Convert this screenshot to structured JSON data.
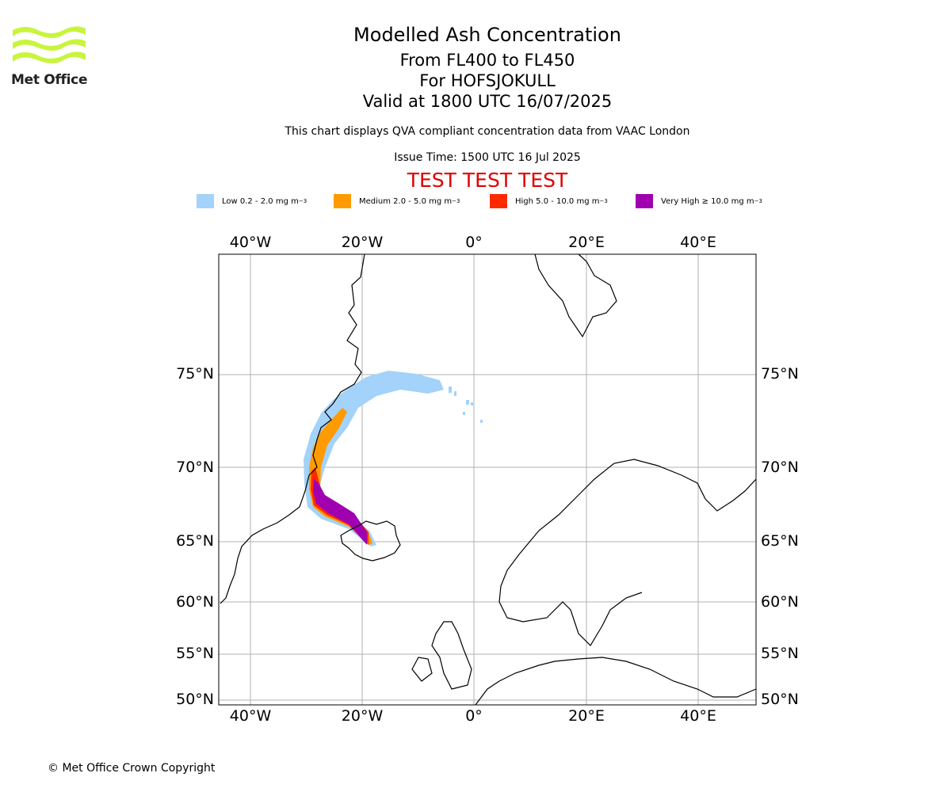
{
  "header": {
    "title": "Modelled Ash Concentration",
    "flight_levels": "From FL400 to FL450",
    "volcano": "For HOFSJOKULL",
    "valid_time": "Valid at 1800 UTC 16/07/2025",
    "note": "This chart displays QVA compliant concentration data from VAAC London",
    "issue_time": "Issue Time: 1500 UTC 16 Jul 2025",
    "test_banner": "TEST TEST TEST"
  },
  "logo": {
    "text": "Met Office",
    "color": "#c8f53c"
  },
  "legend": [
    {
      "label": "Low 0.2 - 2.0 mg m",
      "unit_exp": "−3",
      "color": "#a3d2fa"
    },
    {
      "label": "Medium 2.0 - 5.0 mg m",
      "unit_exp": "−3",
      "color": "#ff9a00"
    },
    {
      "label": "High 5.0 - 10.0 mg m",
      "unit_exp": "−3",
      "color": "#ff2a00"
    },
    {
      "label": "Very High  ≥  10.0 mg m",
      "unit_exp": "−3",
      "color": "#a000b0"
    }
  ],
  "map": {
    "lon_labels": [
      "40°W",
      "20°W",
      "0°",
      "20°E",
      "40°E"
    ],
    "lat_labels": [
      "75°N",
      "70°N",
      "65°N",
      "60°N",
      "55°N",
      "50°N"
    ],
    "gridlines": true
  },
  "footer": {
    "copyright": "© Met Office Crown Copyright"
  }
}
